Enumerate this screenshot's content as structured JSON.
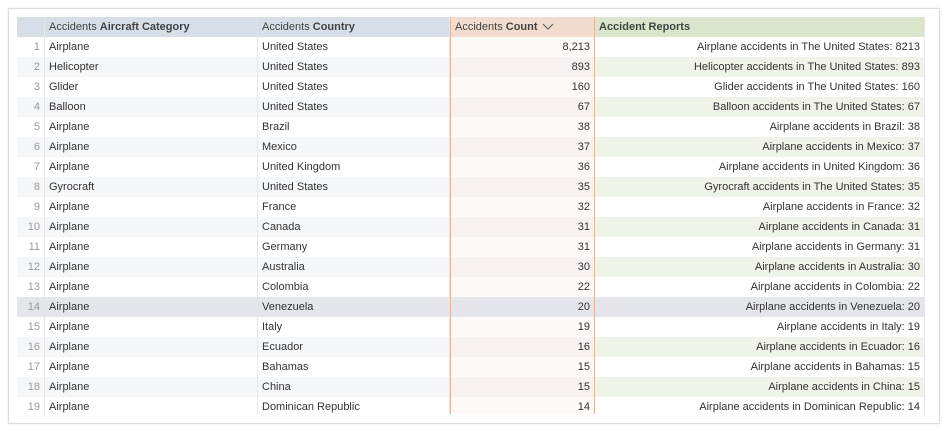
{
  "table": {
    "columns": [
      {
        "prefix": "Accidents",
        "label": "Aircraft Category"
      },
      {
        "prefix": "Accidents",
        "label": "Country"
      },
      {
        "prefix": "Accidents",
        "label": "Count"
      },
      {
        "label": "Accident Reports"
      }
    ],
    "rows": [
      [
        1,
        "Airplane",
        "United States",
        "8,213",
        "Airplane accidents in The United States: 8213"
      ],
      [
        2,
        "Helicopter",
        "United States",
        "893",
        "Helicopter accidents in The United States: 893"
      ],
      [
        3,
        "Glider",
        "United States",
        "160",
        "Glider accidents in The United States: 160"
      ],
      [
        4,
        "Balloon",
        "United States",
        "67",
        "Balloon accidents in The United States: 67"
      ],
      [
        5,
        "Airplane",
        "Brazil",
        "38",
        "Airplane accidents in Brazil: 38"
      ],
      [
        6,
        "Airplane",
        "Mexico",
        "37",
        "Airplane accidents in Mexico: 37"
      ],
      [
        7,
        "Airplane",
        "United Kingdom",
        "36",
        "Airplane accidents in United Kingdom: 36"
      ],
      [
        8,
        "Gyrocraft",
        "United States",
        "35",
        "Gyrocraft accidents in The United States: 35"
      ],
      [
        9,
        "Airplane",
        "France",
        "32",
        "Airplane accidents in France: 32"
      ],
      [
        10,
        "Airplane",
        "Canada",
        "31",
        "Airplane accidents in Canada: 31"
      ],
      [
        11,
        "Airplane",
        "Germany",
        "31",
        "Airplane accidents in Germany: 31"
      ],
      [
        12,
        "Airplane",
        "Australia",
        "30",
        "Airplane accidents in Australia: 30"
      ],
      [
        13,
        "Airplane",
        "Colombia",
        "22",
        "Airplane accidents in Colombia: 22"
      ],
      [
        14,
        "Airplane",
        "Venezuela",
        "20",
        "Airplane accidents in Venezuela: 20"
      ],
      [
        15,
        "Airplane",
        "Italy",
        "19",
        "Airplane accidents in Italy: 19"
      ],
      [
        16,
        "Airplane",
        "Ecuador",
        "16",
        "Airplane accidents in Ecuador: 16"
      ],
      [
        17,
        "Airplane",
        "Bahamas",
        "15",
        "Airplane accidents in Bahamas: 15"
      ],
      [
        18,
        "Airplane",
        "China",
        "15",
        "Airplane accidents in China: 15"
      ],
      [
        19,
        "Airplane",
        "Dominican Republic",
        "14",
        "Airplane accidents in Dominican Republic: 14"
      ]
    ]
  }
}
